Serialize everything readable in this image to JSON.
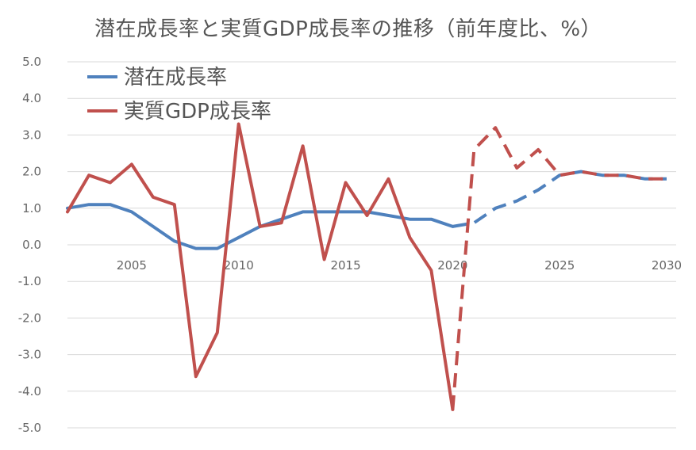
{
  "chart_data": {
    "type": "line",
    "title": "潜在成長率と実質GDP成長率の推移（前年度比、%）",
    "xlabel": "",
    "ylabel": "",
    "xlim": [
      2002,
      2030
    ],
    "ylim": [
      -5.0,
      5.0
    ],
    "x_ticks": [
      2005,
      2010,
      2015,
      2020,
      2025,
      2030
    ],
    "y_ticks": [
      "5.0",
      "4.0",
      "3.0",
      "2.0",
      "1.0",
      "0.0",
      "-1.0",
      "-2.0",
      "-3.0",
      "-4.0",
      "-5.0"
    ],
    "grid": "horizontal",
    "legend_position": "top-left",
    "series": [
      {
        "name": "潜在成長率",
        "color": "#4f81bd",
        "solid": [
          [
            2002,
            1.0
          ],
          [
            2003,
            1.1
          ],
          [
            2004,
            1.1
          ],
          [
            2005,
            0.9
          ],
          [
            2006,
            0.5
          ],
          [
            2007,
            0.1
          ],
          [
            2008,
            -0.1
          ],
          [
            2009,
            -0.1
          ],
          [
            2010,
            0.2
          ],
          [
            2011,
            0.5
          ],
          [
            2012,
            0.7
          ],
          [
            2013,
            0.9
          ],
          [
            2014,
            0.9
          ],
          [
            2015,
            0.9
          ],
          [
            2016,
            0.9
          ],
          [
            2017,
            0.8
          ],
          [
            2018,
            0.7
          ],
          [
            2019,
            0.7
          ],
          [
            2020,
            0.5
          ]
        ],
        "dashed": [
          [
            2020,
            0.5
          ],
          [
            2021,
            0.6
          ],
          [
            2022,
            1.0
          ],
          [
            2023,
            1.2
          ],
          [
            2024,
            1.5
          ],
          [
            2025,
            1.9
          ],
          [
            2026,
            2.0
          ],
          [
            2027,
            1.9
          ],
          [
            2028,
            1.9
          ],
          [
            2029,
            1.8
          ],
          [
            2030,
            1.8
          ]
        ]
      },
      {
        "name": "実質GDP成長率",
        "color": "#c0504d",
        "solid": [
          [
            2002,
            0.9
          ],
          [
            2003,
            1.9
          ],
          [
            2004,
            1.7
          ],
          [
            2005,
            2.2
          ],
          [
            2006,
            1.3
          ],
          [
            2007,
            1.1
          ],
          [
            2008,
            -3.6
          ],
          [
            2009,
            -2.4
          ],
          [
            2010,
            3.3
          ],
          [
            2011,
            0.5
          ],
          [
            2012,
            0.6
          ],
          [
            2013,
            2.7
          ],
          [
            2014,
            -0.4
          ],
          [
            2015,
            1.7
          ],
          [
            2016,
            0.8
          ],
          [
            2017,
            1.8
          ],
          [
            2018,
            0.2
          ],
          [
            2019,
            -0.7
          ],
          [
            2020,
            -4.5
          ]
        ],
        "dashed": [
          [
            2020,
            -4.5
          ],
          [
            2021,
            2.6
          ],
          [
            2022,
            3.2
          ],
          [
            2023,
            2.1
          ],
          [
            2024,
            2.6
          ],
          [
            2025,
            1.9
          ],
          [
            2026,
            2.0
          ],
          [
            2027,
            1.9
          ],
          [
            2028,
            1.9
          ],
          [
            2029,
            1.8
          ],
          [
            2030,
            1.8
          ]
        ]
      }
    ]
  }
}
